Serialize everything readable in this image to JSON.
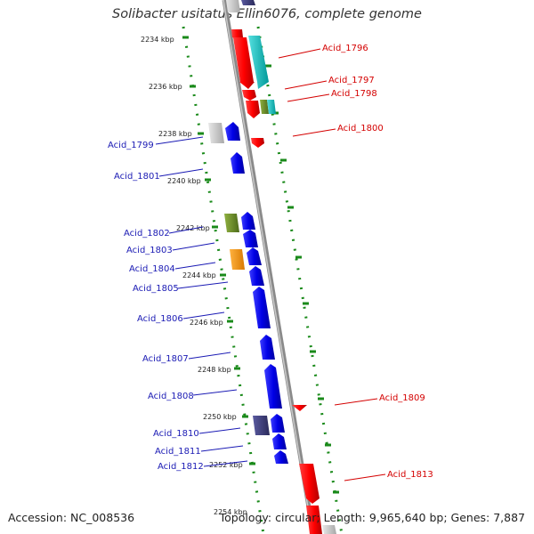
{
  "title": "Solibacter usitatus Ellin6076, complete genome",
  "accession": "Accession: NC_008536",
  "stats": "Topology: circular; Length: 9,965,640 bp; Genes: 7,887",
  "kbp_labels": [
    "2234 kbp",
    "2236 kbp",
    "2238 kbp",
    "2240 kbp",
    "2242 kbp",
    "2244 kbp",
    "2246 kbp",
    "2248 kbp",
    "2250 kbp",
    "2252 kbp",
    "2254 kbp"
  ],
  "forward_genes": [
    "Acid_1796",
    "Acid_1797",
    "Acid_1798",
    "Acid_1800",
    "Acid_1809",
    "Acid_1813"
  ],
  "reverse_genes": [
    "Acid_1799",
    "Acid_1801",
    "Acid_1802",
    "Acid_1803",
    "Acid_1804",
    "Acid_1805",
    "Acid_1806",
    "Acid_1807",
    "Acid_1808",
    "Acid_1810",
    "Acid_1811",
    "Acid_1812"
  ],
  "colors": {
    "forward": "#ff0000",
    "reverse": "#0000e6",
    "cyan": "#00cccc",
    "gray": "#c8c8c8",
    "olive": "#6b8e23",
    "orange": "#ff9900",
    "navy": "#3c3c78",
    "backbone": "#888888"
  }
}
